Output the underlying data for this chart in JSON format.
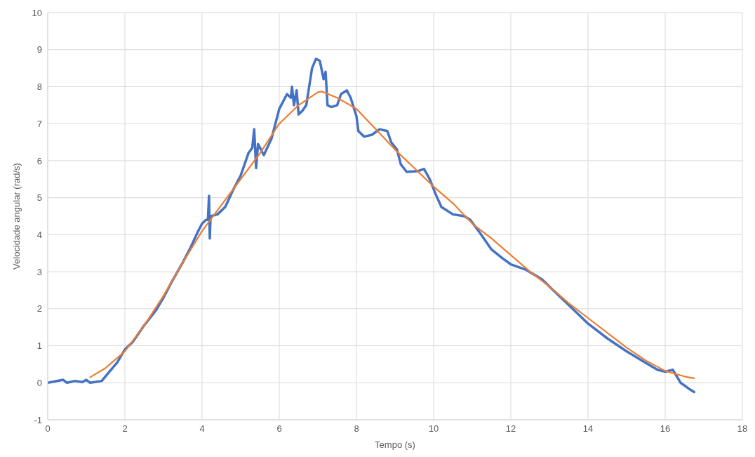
{
  "chart_data": {
    "type": "line",
    "xlabel": "Tempo (s)",
    "ylabel": "Velocidade angular (rad/s)",
    "xlim": [
      0,
      18
    ],
    "xticks": [
      0,
      2,
      4,
      6,
      8,
      10,
      12,
      14,
      16,
      18
    ],
    "ylim": [
      -1,
      10
    ],
    "yticks": [
      -1,
      0,
      1,
      2,
      3,
      4,
      5,
      6,
      7,
      8,
      9,
      10
    ],
    "grid": true,
    "marker": "none",
    "line_style": "solid",
    "series": [
      {
        "color": "#4472c4",
        "x": [
          0,
          0.4,
          0.5,
          0.7,
          0.9,
          1.0,
          1.1,
          1.4,
          1.6,
          1.8,
          2.0,
          2.2,
          2.5,
          2.8,
          3.0,
          3.2,
          3.5,
          3.7,
          3.9,
          4.0,
          4.1,
          4.15,
          4.18,
          4.2,
          4.22,
          4.4,
          4.6,
          4.8,
          5.0,
          5.2,
          5.3,
          5.35,
          5.4,
          5.45,
          5.6,
          5.8,
          6.0,
          6.2,
          6.3,
          6.33,
          6.38,
          6.45,
          6.5,
          6.6,
          6.7,
          6.85,
          6.95,
          7.05,
          7.15,
          7.2,
          7.25,
          7.35,
          7.5,
          7.6,
          7.75,
          7.85,
          8.0,
          8.05,
          8.2,
          8.4,
          8.6,
          8.8,
          8.9,
          9.05,
          9.15,
          9.3,
          9.6,
          9.75,
          9.9,
          10.05,
          10.2,
          10.5,
          10.8,
          10.95,
          11.2,
          11.5,
          11.8,
          12.0,
          12.4,
          12.8,
          13.2,
          13.6,
          14.0,
          14.5,
          15.0,
          15.4,
          15.8,
          16.0,
          16.2,
          16.4,
          16.6,
          16.75
        ],
        "values": [
          0,
          0.08,
          0,
          0.05,
          0.02,
          0.08,
          0,
          0.05,
          0.3,
          0.55,
          0.9,
          1.1,
          1.55,
          1.95,
          2.3,
          2.7,
          3.25,
          3.65,
          4.1,
          4.3,
          4.4,
          4.4,
          5.05,
          3.9,
          4.5,
          4.55,
          4.75,
          5.2,
          5.6,
          6.2,
          6.35,
          6.85,
          5.8,
          6.45,
          6.15,
          6.6,
          7.4,
          7.8,
          7.7,
          8.0,
          7.5,
          7.9,
          7.25,
          7.35,
          7.5,
          8.5,
          8.75,
          8.7,
          8.2,
          8.4,
          7.5,
          7.45,
          7.5,
          7.8,
          7.9,
          7.7,
          7.2,
          6.8,
          6.65,
          6.7,
          6.85,
          6.8,
          6.5,
          6.3,
          5.9,
          5.7,
          5.72,
          5.78,
          5.5,
          5.1,
          4.75,
          4.55,
          4.5,
          4.4,
          4.05,
          3.6,
          3.35,
          3.2,
          3.05,
          2.8,
          2.4,
          2.0,
          1.6,
          1.2,
          0.85,
          0.6,
          0.35,
          0.3,
          0.35,
          0,
          -0.15,
          -0.25
        ]
      },
      {
        "color": "#ed7d31",
        "x": [
          1.1,
          1.5,
          2.0,
          2.5,
          3.0,
          3.5,
          4.0,
          4.5,
          5.0,
          5.5,
          6.0,
          6.5,
          7.0,
          7.1,
          7.5,
          8.0,
          8.5,
          9.0,
          9.5,
          10.0,
          10.5,
          11.0,
          11.5,
          12.0,
          12.5,
          13.0,
          13.5,
          14.0,
          14.5,
          15.0,
          15.5,
          16.0,
          16.5,
          16.75
        ],
        "values": [
          0.15,
          0.4,
          0.85,
          1.55,
          2.35,
          3.25,
          4.1,
          4.8,
          5.5,
          6.2,
          7.0,
          7.5,
          7.85,
          7.87,
          7.7,
          7.4,
          6.85,
          6.3,
          5.8,
          5.3,
          4.85,
          4.3,
          3.9,
          3.45,
          3.0,
          2.6,
          2.15,
          1.75,
          1.35,
          0.95,
          0.6,
          0.32,
          0.17,
          0.12
        ]
      }
    ]
  }
}
